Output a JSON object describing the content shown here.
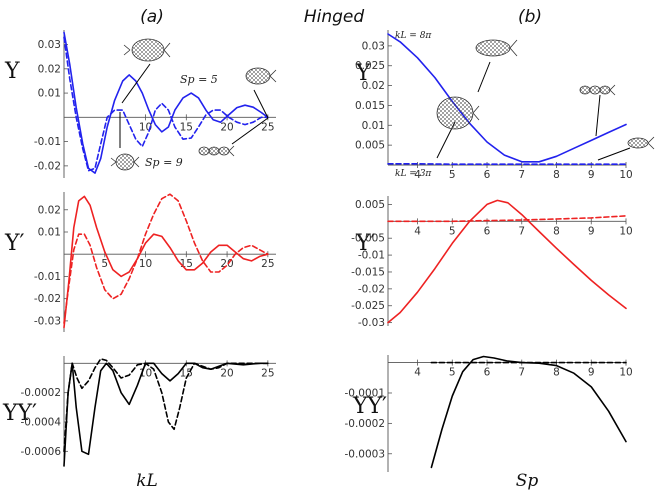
{
  "titles": {
    "left": "(a)",
    "center": "Hinged",
    "right": "(b)"
  },
  "x_labels": {
    "left": "kL",
    "right": "Sp"
  },
  "y_labels": {
    "top": "Υ",
    "mid": "Υ′",
    "bot": "ΥΥ′"
  },
  "annotations": {
    "sp5": "Sp = 5",
    "sp9": "Sp = 9",
    "kl8pi": "kL = 8π",
    "kl3pi": "kL = 3π"
  },
  "colors": {
    "blue": "#2222ee",
    "red": "#ee2222",
    "black": "#000000"
  },
  "chart_data": [
    {
      "id": "a-top",
      "type": "line",
      "title": "(a)",
      "xlabel": "",
      "ylabel": "Υ",
      "xlim": [
        0,
        26
      ],
      "ylim": [
        -0.025,
        0.036
      ],
      "xticks": [
        10,
        15,
        20,
        25
      ],
      "yticks": [
        0.03,
        0.02,
        0.01,
        -0.01,
        -0.02
      ],
      "series": [
        {
          "name": "Sp = 5",
          "style": "solid",
          "color": "#2222ee",
          "x": [
            0,
            0.7,
            1.5,
            2.3,
            3.0,
            3.8,
            4.5,
            5.3,
            6.2,
            7.2,
            8.0,
            8.8,
            9.6,
            10.4,
            11.2,
            12.0,
            12.8,
            13.6,
            14.6,
            15.6,
            16.5,
            17.4,
            18.3,
            19.2,
            20.2,
            21.2,
            22.2,
            23.2,
            24.2,
            25.0
          ],
          "y": [
            0.035,
            0.022,
            0.004,
            -0.011,
            -0.021,
            -0.023,
            -0.017,
            -0.004,
            0.007,
            0.015,
            0.0175,
            0.015,
            0.01,
            0.003,
            -0.003,
            -0.006,
            -0.004,
            0.003,
            0.008,
            0.01,
            0.008,
            0.003,
            -0.001,
            -0.002,
            0.001,
            0.004,
            0.005,
            0.0042,
            0.002,
            0.0
          ]
        },
        {
          "name": "Sp = 9",
          "style": "dashed",
          "color": "#2222ee",
          "x": [
            0,
            0.7,
            1.5,
            2.3,
            3.0,
            3.8,
            4.5,
            5.3,
            6.2,
            7.2,
            8.0,
            8.8,
            9.6,
            10.4,
            11.2,
            12.0,
            12.8,
            13.6,
            14.6,
            15.6,
            16.5,
            17.4,
            18.3,
            19.2,
            20.2,
            21.2,
            22.2,
            23.2,
            24.2,
            25.0
          ],
          "y": [
            0.033,
            0.016,
            0.0,
            -0.013,
            -0.022,
            -0.021,
            -0.011,
            0.0,
            0.003,
            0.003,
            -0.003,
            -0.009,
            -0.012,
            -0.006,
            0.003,
            0.0058,
            0.003,
            -0.004,
            -0.009,
            -0.0085,
            -0.004,
            0.001,
            0.003,
            0.003,
            0.0,
            -0.002,
            -0.003,
            -0.002,
            0.0,
            0.0
          ]
        }
      ]
    },
    {
      "id": "a-mid",
      "type": "line",
      "xlabel": "",
      "ylabel": "Υ′",
      "xlim": [
        0,
        26
      ],
      "ylim": [
        -0.035,
        0.028
      ],
      "xticks": [
        5,
        10,
        15,
        20,
        25
      ],
      "yticks": [
        0.02,
        0.01,
        -0.01,
        -0.02,
        -0.03
      ],
      "series": [
        {
          "name": "Sp = 5",
          "style": "solid",
          "color": "#ee2222",
          "x": [
            0,
            0.6,
            1.2,
            1.8,
            2.5,
            3.2,
            4.0,
            5.0,
            6.0,
            7.0,
            8.0,
            9.0,
            10.0,
            11.0,
            12.0,
            13.0,
            14.0,
            15.0,
            16.0,
            17.0,
            18.0,
            19.0,
            20.0,
            21.0,
            22.0,
            23.0,
            24.0,
            25.0
          ],
          "y": [
            -0.033,
            -0.012,
            0.012,
            0.024,
            0.026,
            0.022,
            0.012,
            0.001,
            -0.007,
            -0.01,
            -0.008,
            -0.002,
            0.005,
            0.009,
            0.008,
            0.003,
            -0.003,
            -0.007,
            -0.007,
            -0.004,
            0.001,
            0.004,
            0.004,
            0.001,
            -0.002,
            -0.003,
            -0.001,
            0.0
          ]
        },
        {
          "name": "Sp = 9",
          "style": "dashed",
          "color": "#ee2222",
          "x": [
            0,
            0.6,
            1.2,
            1.8,
            2.5,
            3.2,
            4.0,
            5.0,
            6.0,
            7.0,
            8.0,
            9.0,
            10.0,
            11.0,
            12.0,
            13.0,
            14.0,
            15.0,
            16.0,
            17.0,
            18.0,
            19.0,
            20.0,
            21.0,
            22.0,
            23.0,
            24.0,
            25.0
          ],
          "y": [
            -0.031,
            -0.014,
            0.002,
            0.009,
            0.009,
            0.004,
            -0.006,
            -0.016,
            -0.02,
            -0.018,
            -0.011,
            -0.002,
            0.009,
            0.018,
            0.025,
            0.027,
            0.024,
            0.015,
            0.005,
            -0.003,
            -0.008,
            -0.008,
            -0.005,
            0.0,
            0.003,
            0.004,
            0.002,
            0.0
          ]
        }
      ]
    },
    {
      "id": "a-bot",
      "type": "line",
      "xlabel": "kL",
      "ylabel": "ΥΥ′",
      "xlim": [
        0,
        26
      ],
      "ylim": [
        -0.0007,
        5e-05
      ],
      "xticks": [
        10,
        15,
        20,
        25
      ],
      "yticks": [
        -0.0002,
        -0.0004,
        -0.0006
      ],
      "series": [
        {
          "name": "Sp = 5",
          "style": "solid",
          "color": "#000000",
          "x": [
            0,
            0.5,
            1.0,
            1.5,
            2.2,
            3.0,
            3.8,
            4.5,
            5.2,
            6.0,
            7.0,
            8.0,
            9.0,
            10.0,
            11.0,
            12.0,
            13.0,
            14.0,
            15.0,
            16.0,
            17.0,
            18.0,
            19.0,
            20.0,
            22.0,
            24.0,
            25.0
          ],
          "y": [
            -0.0007,
            -0.0002,
            0.0,
            -0.0003,
            -0.0006,
            -0.00062,
            -0.0003,
            -5e-05,
            0.0,
            -5e-05,
            -0.0002,
            -0.00028,
            -0.00015,
            0.0,
            0.0,
            -7e-05,
            -0.00012,
            -7e-05,
            0.0,
            0.0,
            -3e-05,
            -4e-05,
            -2e-05,
            0.0,
            -1e-05,
            0.0,
            0.0
          ]
        },
        {
          "name": "Sp = 9",
          "style": "dashed",
          "color": "#000000",
          "x": [
            0,
            0.5,
            1.0,
            1.6,
            2.2,
            3.0,
            3.8,
            4.5,
            5.2,
            6.0,
            7.0,
            8.0,
            9.0,
            10.0,
            11.0,
            12.0,
            12.8,
            13.5,
            14.2,
            15.0,
            16.0,
            17.0,
            18.0,
            19.0,
            20.0,
            22.0,
            24.0,
            25.0
          ],
          "y": [
            -0.0006,
            -0.0002,
            0.0,
            -0.0001,
            -0.00017,
            -0.00012,
            -3e-05,
            3e-05,
            2e-05,
            -3e-05,
            -0.0001,
            -8e-05,
            -1e-05,
            0.0,
            -4e-05,
            -0.0002,
            -0.0004,
            -0.00045,
            -0.0003,
            -0.0001,
            0.0,
            -2e-05,
            -4e-05,
            -3e-05,
            0.0,
            0.0,
            0.0,
            0.0
          ]
        }
      ]
    },
    {
      "id": "b-top",
      "type": "line",
      "title": "(b)",
      "xlabel": "",
      "ylabel": "Υ",
      "xlim": [
        3.15,
        10
      ],
      "ylim": [
        0,
        0.034
      ],
      "xticks": [
        4,
        5,
        6,
        7,
        8,
        9,
        10
      ],
      "yticks": [
        0.03,
        0.025,
        0.02,
        0.015,
        0.01,
        0.005
      ],
      "series": [
        {
          "name": "kL = 8π",
          "style": "solid",
          "color": "#2222ee",
          "x": [
            3.15,
            3.5,
            4.0,
            4.5,
            5.0,
            5.5,
            6.0,
            6.5,
            7.0,
            7.5,
            8.0,
            8.5,
            9.0,
            9.5,
            10.0
          ],
          "y": [
            0.033,
            0.031,
            0.027,
            0.022,
            0.016,
            0.0105,
            0.0058,
            0.0025,
            0.0008,
            0.0008,
            0.0022,
            0.0042,
            0.0062,
            0.0082,
            0.0102
          ]
        },
        {
          "name": "kL = 3π",
          "style": "dashed",
          "color": "#2222ee",
          "x": [
            3.15,
            4,
            5,
            6,
            7,
            8,
            9,
            10
          ],
          "y": [
            0.0003,
            0.0003,
            0.0002,
            0.0002,
            0.0002,
            0.0002,
            0.0002,
            0.0002
          ]
        }
      ]
    },
    {
      "id": "b-mid",
      "type": "line",
      "xlabel": "",
      "ylabel": "Υ′",
      "xlim": [
        3.15,
        10
      ],
      "ylim": [
        -0.031,
        0.0075
      ],
      "xticks": [
        4,
        5,
        6,
        7,
        8,
        9,
        10
      ],
      "yticks": [
        0.005,
        -0.005,
        -0.01,
        -0.015,
        -0.02,
        -0.025,
        -0.03
      ],
      "series": [
        {
          "name": "kL = 8π",
          "style": "solid",
          "color": "#ee2222",
          "x": [
            3.15,
            3.5,
            4.0,
            4.5,
            5.0,
            5.5,
            6.0,
            6.3,
            6.6,
            7.0,
            7.5,
            8.0,
            8.5,
            9.0,
            9.5,
            10.0
          ],
          "y": [
            -0.03,
            -0.027,
            -0.021,
            -0.014,
            -0.0065,
            0.0,
            0.005,
            0.0062,
            0.0055,
            0.002,
            -0.003,
            -0.008,
            -0.0128,
            -0.0175,
            -0.0218,
            -0.0258
          ]
        },
        {
          "name": "kL = 3π",
          "style": "dashed",
          "color": "#ee2222",
          "x": [
            3.15,
            4,
            5,
            6,
            7,
            8,
            9,
            10
          ],
          "y": [
            0.0,
            0.0,
            0.0,
            0.0002,
            0.0004,
            0.0007,
            0.001,
            0.0016
          ]
        }
      ]
    },
    {
      "id": "b-bot",
      "type": "line",
      "xlabel": "Sp",
      "ylabel": "ΥΥ′",
      "xlim": [
        3.15,
        10
      ],
      "ylim": [
        -0.00036,
        2.5e-05
      ],
      "xticks": [
        4,
        5,
        6,
        7,
        8,
        9,
        10
      ],
      "yticks": [
        -0.0001,
        -0.0002,
        -0.0003
      ],
      "series": [
        {
          "name": "kL = 8π",
          "style": "solid",
          "color": "#000000",
          "x": [
            4.4,
            4.7,
            5.0,
            5.3,
            5.6,
            5.9,
            6.2,
            6.6,
            7.0,
            7.5,
            8.0,
            8.5,
            9.0,
            9.5,
            10.0
          ],
          "y": [
            -0.000345,
            -0.00022,
            -0.00011,
            -3e-05,
            1e-05,
            2e-05,
            1.5e-05,
            5e-06,
            0.0,
            -2e-06,
            -1e-05,
            -3.5e-05,
            -8e-05,
            -0.00016,
            -0.00026
          ]
        },
        {
          "name": "kL = 3π",
          "style": "dashed",
          "color": "#000000",
          "x": [
            4.4,
            5,
            6,
            7,
            8,
            9,
            10
          ],
          "y": [
            0.0,
            0.0,
            0.0,
            0.0,
            0.0,
            0.0,
            0.0
          ]
        }
      ]
    }
  ]
}
